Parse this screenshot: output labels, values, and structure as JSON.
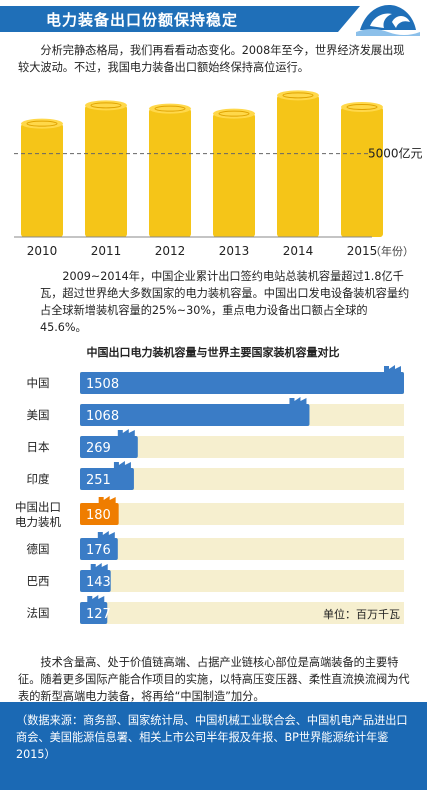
{
  "header": {
    "title": "电力装备出口份额保持稳定"
  },
  "intro": "分析完静态格局，我们再看看动态变化。2008年至今，世界经济发展出现较大波动。不过，我国电力装备出口额始终保持高位运行。",
  "paragraph2": "2009~2014年，中国企业累计出口签约电站总装机容量超过1.8亿千瓦，超过世界绝大多数国家的电力装机容量。中国出口发电设备装机容量约占全球新增装机容量的25%~30%，重点电力设备出口额占全球的45.6%。",
  "paragraph3": "技术含量高、处于价值链高端、占据产业链核心部位是高端装备的主要特征。随着更多国际产能合作项目的实施，以特高压变压器、柔性直流换流阀为代表的新型高端电力装备，将再给“中国制造”加分。",
  "footer": {
    "source": "（数据来源：商务部、国家统计局、中国机械工业联合会、中国机电产品进出口商会、美国能源信息署、相关上市公司半年报及年报、BP世界能源统计年鉴2015）"
  },
  "colors": {
    "accent": "#1f6fb8",
    "gold": "#f5c518",
    "coin_dark": "#e0a300",
    "bar_blue": "#3a7cc6",
    "bar_orange": "#ef7d00",
    "track": "#f6efcf"
  },
  "chart_data": [
    {
      "type": "bar",
      "categories": [
        "2010",
        "2011",
        "2012",
        "2013",
        "2014",
        "2015"
      ],
      "values": [
        6800,
        7900,
        7700,
        7400,
        8500,
        7800
      ],
      "reference_line": {
        "value": 5000,
        "label": "5000亿元"
      },
      "x_unit_label": "（年份）",
      "ylim": [
        0,
        9000
      ],
      "grid": false
    },
    {
      "type": "bar",
      "orientation": "horizontal",
      "title": "中国出口电力装机容量与世界主要国家装机容量对比",
      "unit_label": "单位：百万千瓦",
      "categories": [
        "中国",
        "美国",
        "日本",
        "印度",
        "中国出口\n电力装机",
        "德国",
        "巴西",
        "法国"
      ],
      "values": [
        1508,
        1068,
        269,
        251,
        180,
        176,
        143,
        127
      ],
      "highlight": "中国出口\n电力装机",
      "xlim": [
        0,
        1508
      ]
    }
  ]
}
